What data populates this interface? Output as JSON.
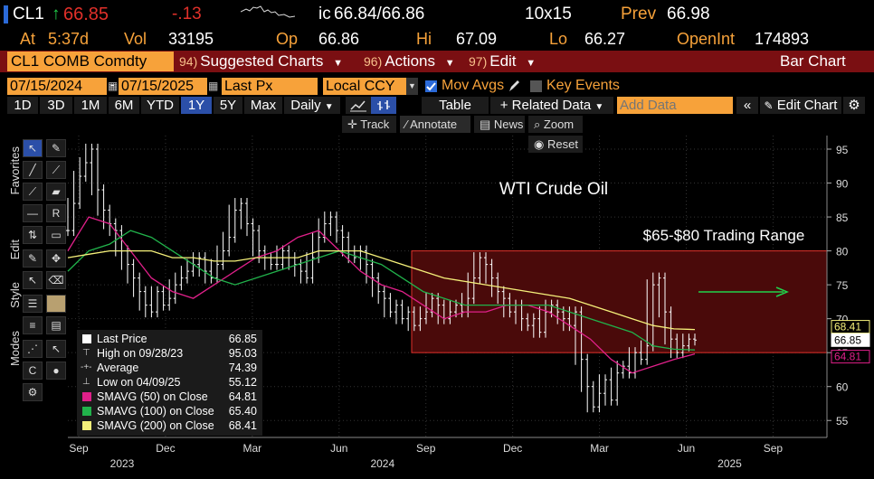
{
  "quote": {
    "ticker": "CL1",
    "arrow": "↑",
    "last": "66.85",
    "change": "-.13",
    "ic_label": "ic",
    "bid_ask": "66.84/66.86",
    "size": "10x15",
    "prev_label": "Prev",
    "prev": "66.98",
    "at_label": "At",
    "time": "5:37d",
    "vol_label": "Vol",
    "vol": "33195",
    "op_label": "Op",
    "open": "66.86",
    "hi_label": "Hi",
    "high": "67.09",
    "lo_label": "Lo",
    "low": "66.27",
    "oi_label": "OpenInt",
    "open_interest": "174893"
  },
  "secbar": {
    "security": "CL1 COMB Comdty",
    "menus": [
      {
        "code": "94)",
        "label": "Suggested Charts"
      },
      {
        "code": "96)",
        "label": "Actions"
      },
      {
        "code": "97)",
        "label": "Edit"
      }
    ],
    "chart_type": "Bar Chart"
  },
  "settings": {
    "start_date": "07/15/2024",
    "end_date": "07/15/2025",
    "field": "Last Px",
    "currency": "Local CCY",
    "mov_avgs_label": "Mov Avgs",
    "mov_avgs_checked": true,
    "key_events_label": "Key Events",
    "key_events_checked": false
  },
  "toolbar": {
    "periods": [
      "1D",
      "3D",
      "1M",
      "6M",
      "YTD",
      "1Y",
      "5Y",
      "Max"
    ],
    "selected_period": "1Y",
    "frequency": "Daily",
    "table_label": "Table",
    "related_label": "+ Related Data",
    "add_data_placeholder": "Add Data",
    "edit_chart_label": "Edit Chart"
  },
  "panel_tools": {
    "track": "Track",
    "annotate": "Annotate",
    "news": "News",
    "zoom": "Zoom",
    "reset": "Reset"
  },
  "side_labels": {
    "favorites": "Favorites",
    "edit": "Edit",
    "style": "Style",
    "modes": "Modes"
  },
  "annotations": {
    "title": "WTI Crude Oil",
    "range_label": "$65-$80 Trading Range"
  },
  "legend": [
    {
      "label": "Last Price",
      "value": "66.85",
      "color": "#ffffff"
    },
    {
      "label": "High on 09/28/23",
      "value": "95.03",
      "color": ""
    },
    {
      "label": "Average",
      "value": "74.39",
      "color": ""
    },
    {
      "label": "Low on 04/09/25",
      "value": "55.12",
      "color": ""
    },
    {
      "label": "SMAVG (50)  on Close",
      "value": "64.81",
      "color": "#e0208a"
    },
    {
      "label": "SMAVG (100)  on Close",
      "value": "65.40",
      "color": "#21b24b"
    },
    {
      "label": "SMAVG (200)  on Close",
      "value": "68.41",
      "color": "#f5f07a"
    }
  ],
  "colors": {
    "accent_orange": "#f7a23a",
    "bar_red": "#7a0f12",
    "range_fill": "#4a0a0a",
    "range_line": "#e0302a",
    "sma50": "#e0208a",
    "sma100": "#21b24b",
    "sma200": "#f5f07a",
    "arrow": "#21d14b"
  },
  "chart_data": {
    "type": "line",
    "title": "WTI Crude Oil",
    "y_ticks": [
      55,
      60,
      65,
      70,
      75,
      80,
      85,
      90,
      95
    ],
    "ylim": [
      52.5,
      97
    ],
    "x_ticks": [
      {
        "label": "Sep",
        "year": "2023"
      },
      {
        "label": "Dec",
        "year": ""
      },
      {
        "label": "Mar",
        "year": ""
      },
      {
        "label": "Jun",
        "year": "2024"
      },
      {
        "label": "Sep",
        "year": ""
      },
      {
        "label": "Dec",
        "year": ""
      },
      {
        "label": "Mar",
        "year": ""
      },
      {
        "label": "Jun",
        "year": "2025"
      },
      {
        "label": "Sep",
        "year": ""
      }
    ],
    "axis_badges": [
      {
        "value": "68.41",
        "color": "#f5f07a"
      },
      {
        "value": "66.85",
        "color": "#ffffff"
      },
      {
        "value": "64.81",
        "color": "#e0208a"
      }
    ],
    "range_band": [
      65,
      80
    ],
    "series": [
      {
        "name": "Last Price",
        "x": [
          0,
          0.3,
          0.6,
          0.9,
          1.2,
          1.5,
          1.8,
          2.1,
          2.4,
          2.7,
          3.0,
          3.3,
          3.6,
          3.9,
          4.2,
          4.5,
          4.8,
          5.1,
          5.4,
          5.7,
          6.0,
          6.3,
          6.6,
          6.9,
          7.2,
          7.5,
          7.8,
          8.1,
          8.4,
          8.7,
          9.0,
          9.3,
          9.6,
          9.9,
          10.2,
          10.5,
          10.8,
          11.1,
          11.4,
          11.7,
          12.0,
          12.3,
          12.6,
          12.9,
          13.2,
          13.5,
          13.8,
          14.1,
          14.4,
          14.7,
          15.0,
          15.3,
          15.6,
          15.9,
          16.2,
          16.5,
          16.8,
          17.1,
          17.4,
          17.7,
          18.0,
          18.3,
          18.6,
          18.9,
          19.2,
          19.5,
          19.8,
          20.1,
          20.4,
          20.7,
          21.0,
          21.3,
          21.6,
          21.9,
          22.2,
          22.5,
          22.8,
          23.1
        ],
        "y": [
          83,
          87,
          91,
          93,
          95,
          89,
          86,
          84,
          83,
          80,
          78,
          76,
          74,
          72,
          71,
          74,
          72,
          73,
          75,
          76,
          77,
          78,
          79,
          77,
          76,
          78,
          80,
          82,
          86,
          87,
          84,
          83,
          80,
          79,
          78,
          78,
          80,
          79,
          78,
          77,
          76,
          79,
          82,
          84,
          85,
          83,
          82,
          80,
          79,
          80,
          78,
          76,
          74,
          73,
          71,
          72,
          70,
          71,
          69,
          70,
          71,
          73,
          72,
          70,
          71,
          72,
          71,
          73,
          76,
          79,
          78,
          76,
          74,
          73,
          71,
          72,
          70,
          69
        ]
      },
      {
        "name": "Last Price (cont.)",
        "x": [
          23.4,
          23.7,
          24.0,
          24.3,
          24.6,
          24.9,
          25.2,
          25.5,
          25.8,
          26.1,
          26.4,
          26.7,
          27.0,
          27.3,
          27.6,
          27.9,
          28.2,
          28.5,
          28.8,
          29.1,
          29.4,
          29.7,
          30.0,
          30.3,
          30.6,
          30.9,
          31.2,
          31.5
        ],
        "y": [
          70,
          68,
          71,
          72,
          71,
          70,
          69,
          71,
          64,
          60,
          57,
          59,
          61,
          58,
          62,
          63,
          62,
          65,
          64,
          66,
          75,
          76,
          71,
          67,
          65,
          66,
          67,
          66.85
        ]
      },
      {
        "name": "SMAVG (50)",
        "y": [
          80,
          85,
          84,
          80,
          76,
          74,
          73,
          75,
          77,
          79,
          80,
          82,
          83,
          80,
          77,
          75,
          74,
          72,
          70,
          71,
          71,
          72,
          72,
          71,
          69,
          67,
          64,
          62,
          63,
          64,
          64.81
        ]
      },
      {
        "name": "SMAVG (100)",
        "y": [
          77,
          80,
          81,
          83,
          82,
          80,
          78,
          76,
          75,
          76,
          77,
          78,
          79,
          80,
          79,
          78,
          76,
          74,
          73,
          72,
          72,
          72,
          72,
          72,
          71,
          70,
          69,
          68,
          66,
          65.5,
          65.4
        ]
      },
      {
        "name": "SMAVG (200)",
        "y": [
          79,
          79.5,
          80,
          80,
          80,
          79,
          79,
          78.5,
          78.5,
          79,
          79,
          79,
          80,
          80,
          80,
          79,
          78,
          77,
          76,
          75.5,
          75,
          74.5,
          74,
          73.5,
          73,
          72,
          71,
          70,
          69,
          68.5,
          68.41
        ]
      }
    ]
  }
}
